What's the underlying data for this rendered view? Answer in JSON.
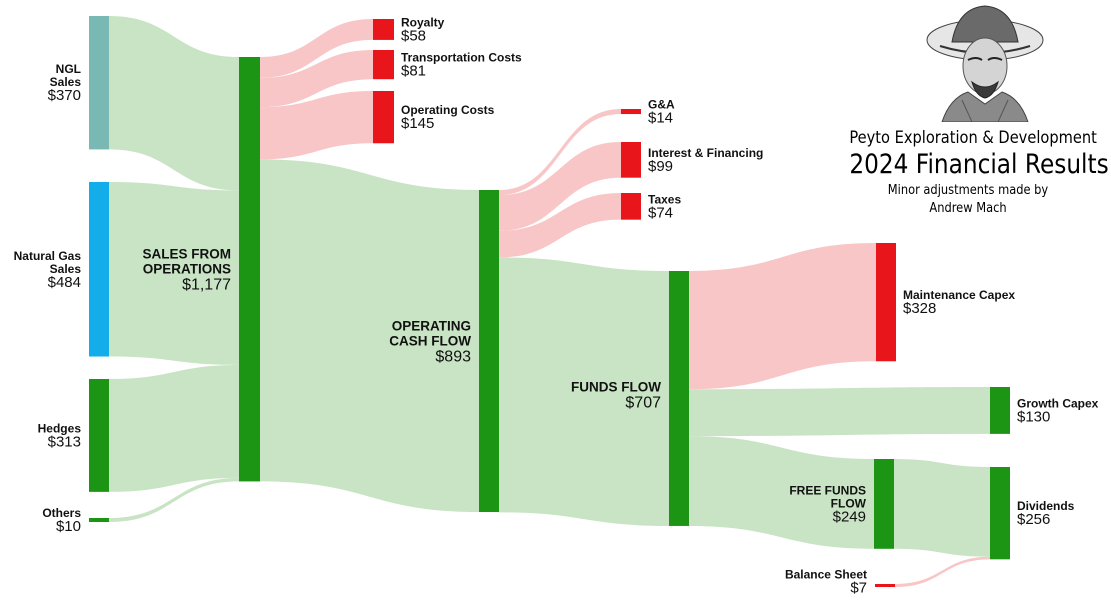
{
  "header": {
    "company": "Peyto Exploration & Development",
    "title": "2024 Financial Results",
    "credit_line1": "Minor adjustments made by",
    "credit_line2": "Andrew Mach"
  },
  "chart_data": {
    "type": "sankey",
    "nodes": [
      {
        "id": "ngl",
        "name": "NGL\nSales",
        "value_label": "$370",
        "value": 370,
        "color": "#7ab8b3"
      },
      {
        "id": "natgas",
        "name": "Natural Gas\nSales",
        "value_label": "$484",
        "value": 484,
        "color": "#13aeea"
      },
      {
        "id": "hedges",
        "name": "Hedges",
        "value_label": "$313",
        "value": 313,
        "color": "#1c9414"
      },
      {
        "id": "others",
        "name": "Others",
        "value_label": "$10",
        "value": 10,
        "color": "#1c9414"
      },
      {
        "id": "sales",
        "name": "SALES FROM\nOPERATIONS",
        "value_label": "$1,177",
        "value": 1177,
        "color": "#1c9414"
      },
      {
        "id": "royalty",
        "name": "Royalty",
        "value_label": "$58",
        "value": 58,
        "color": "#e8161b"
      },
      {
        "id": "transport",
        "name": "Transportation Costs",
        "value_label": "$81",
        "value": 81,
        "color": "#e8161b"
      },
      {
        "id": "opcost",
        "name": "Operating Costs",
        "value_label": "$145",
        "value": 145,
        "color": "#e8161b"
      },
      {
        "id": "ocf",
        "name": "OPERATING\nCASH FLOW",
        "value_label": "$893",
        "value": 893,
        "color": "#1c9414"
      },
      {
        "id": "ga",
        "name": "G&A",
        "value_label": "$14",
        "value": 14,
        "color": "#e8161b"
      },
      {
        "id": "interest",
        "name": "Interest & Financing",
        "value_label": "$99",
        "value": 99,
        "color": "#e8161b"
      },
      {
        "id": "taxes",
        "name": "Taxes",
        "value_label": "$74",
        "value": 74,
        "color": "#e8161b"
      },
      {
        "id": "ff",
        "name": "FUNDS FLOW",
        "value_label": "$707",
        "value": 707,
        "color": "#1c9414"
      },
      {
        "id": "maint",
        "name": "Maintenance Capex",
        "value_label": "$328",
        "value": 328,
        "color": "#e8161b"
      },
      {
        "id": "growth",
        "name": "Growth Capex",
        "value_label": "$130",
        "value": 130,
        "color": "#1c9414"
      },
      {
        "id": "fff",
        "name": "FREE FUNDS\nFLOW",
        "value_label": "$249",
        "value": 249,
        "color": "#1c9414"
      },
      {
        "id": "bs",
        "name": "Balance Sheet",
        "value_label": "$7",
        "value": 7,
        "color": "#e8161b"
      },
      {
        "id": "div",
        "name": "Dividends",
        "value_label": "$256",
        "value": 256,
        "color": "#1c9414"
      }
    ],
    "links": [
      {
        "source": "ngl",
        "target": "sales",
        "value": 370,
        "type": "revenue"
      },
      {
        "source": "natgas",
        "target": "sales",
        "value": 484,
        "type": "revenue"
      },
      {
        "source": "hedges",
        "target": "sales",
        "value": 313,
        "type": "revenue"
      },
      {
        "source": "others",
        "target": "sales",
        "value": 10,
        "type": "revenue"
      },
      {
        "source": "sales",
        "target": "royalty",
        "value": 58,
        "type": "cost"
      },
      {
        "source": "sales",
        "target": "transport",
        "value": 81,
        "type": "cost"
      },
      {
        "source": "sales",
        "target": "opcost",
        "value": 145,
        "type": "cost"
      },
      {
        "source": "sales",
        "target": "ocf",
        "value": 893,
        "type": "revenue"
      },
      {
        "source": "ocf",
        "target": "ga",
        "value": 14,
        "type": "cost"
      },
      {
        "source": "ocf",
        "target": "interest",
        "value": 99,
        "type": "cost"
      },
      {
        "source": "ocf",
        "target": "taxes",
        "value": 74,
        "type": "cost"
      },
      {
        "source": "ocf",
        "target": "ff",
        "value": 707,
        "type": "revenue"
      },
      {
        "source": "ff",
        "target": "maint",
        "value": 328,
        "type": "cost"
      },
      {
        "source": "ff",
        "target": "growth",
        "value": 130,
        "type": "revenue"
      },
      {
        "source": "ff",
        "target": "fff",
        "value": 249,
        "type": "revenue"
      },
      {
        "source": "fff",
        "target": "div",
        "value": 249,
        "type": "revenue"
      },
      {
        "source": "bs",
        "target": "div",
        "value": 7,
        "type": "cost"
      }
    ],
    "link_colors": {
      "revenue": "#c8e4c4",
      "cost": "#f8c6c6"
    }
  }
}
